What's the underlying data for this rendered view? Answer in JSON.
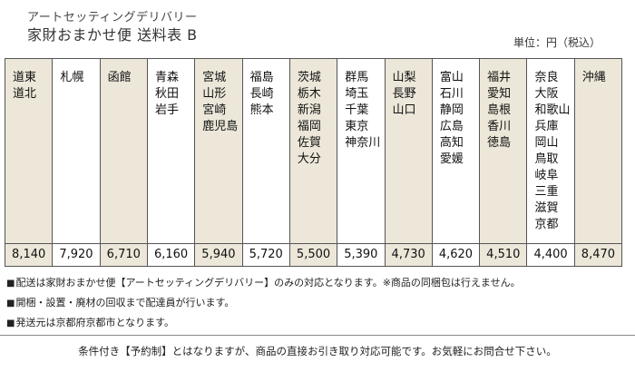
{
  "header": {
    "subtitle": "アートセッティングデリバリー",
    "title": "家財おまかせ便 送料表 B",
    "unit": "単位：円（税込）"
  },
  "regions": [
    {
      "prefs": "道東\n道北",
      "price": "8,140"
    },
    {
      "prefs": "札幌",
      "price": "7,920"
    },
    {
      "prefs": "函館",
      "price": "6,710"
    },
    {
      "prefs": "青森\n秋田\n岩手",
      "price": "6,160"
    },
    {
      "prefs": "宮城\n山形\n宮崎\n鹿児島",
      "price": "5,940"
    },
    {
      "prefs": "福島\n長崎\n熊本",
      "price": "5,720"
    },
    {
      "prefs": "茨城\n栃木\n新潟\n福岡\n佐賀\n大分",
      "price": "5,500"
    },
    {
      "prefs": "群馬\n埼玉\n千葉\n東京\n神奈川",
      "price": "5,390"
    },
    {
      "prefs": "山梨\n長野\n山口",
      "price": "4,730"
    },
    {
      "prefs": "富山\n石川\n静岡\n広島\n高知\n愛媛",
      "price": "4,620"
    },
    {
      "prefs": "福井\n愛知\n島根\n香川\n徳島",
      "price": "4,510"
    },
    {
      "prefs": "奈良\n大阪\n和歌山\n兵庫\n岡山\n鳥取\n岐阜\n三重\n滋賀\n京都",
      "price": "4,400"
    },
    {
      "prefs": "沖縄",
      "price": "8,470"
    }
  ],
  "notes": [
    "配送は家財おまかせ便【アートセッティングデリバリー】のみの対応となります。※商品の同梱包は行えません。",
    "開梱・設置・廃材の回収まで配達員が行います。",
    "発送元は京都府京都市となります。"
  ],
  "footer": "条件付き【予約制】とはなりますが、商品の直接お引き取り対応可能です。お気軽にお問合せ下さい。"
}
